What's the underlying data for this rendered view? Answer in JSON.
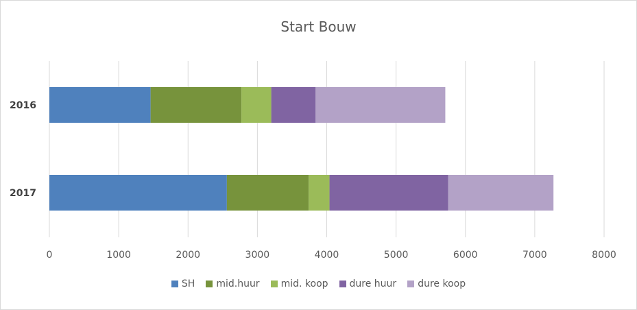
{
  "chart_data": {
    "type": "bar",
    "orientation": "horizontal",
    "stacked": true,
    "title": "Start Bouw",
    "categories": [
      "2016",
      "2017"
    ],
    "series": [
      {
        "name": "SH",
        "color": "#4f81bd",
        "values": [
          1460,
          2560
        ]
      },
      {
        "name": "mid.huur",
        "color": "#77933c",
        "values": [
          1310,
          1180
        ]
      },
      {
        "name": "mid. koop",
        "color": "#9bbb59",
        "values": [
          430,
          300
        ]
      },
      {
        "name": "dure huur",
        "color": "#8064a2",
        "values": [
          640,
          1710
        ]
      },
      {
        "name": "dure koop",
        "color": "#b3a2c7",
        "values": [
          1870,
          1520
        ]
      }
    ],
    "xlim": [
      0,
      8000
    ],
    "xticks": [
      "0",
      "1000",
      "2000",
      "3000",
      "4000",
      "5000",
      "6000",
      "7000",
      "8000"
    ],
    "grid": true,
    "legend_position": "bottom"
  }
}
